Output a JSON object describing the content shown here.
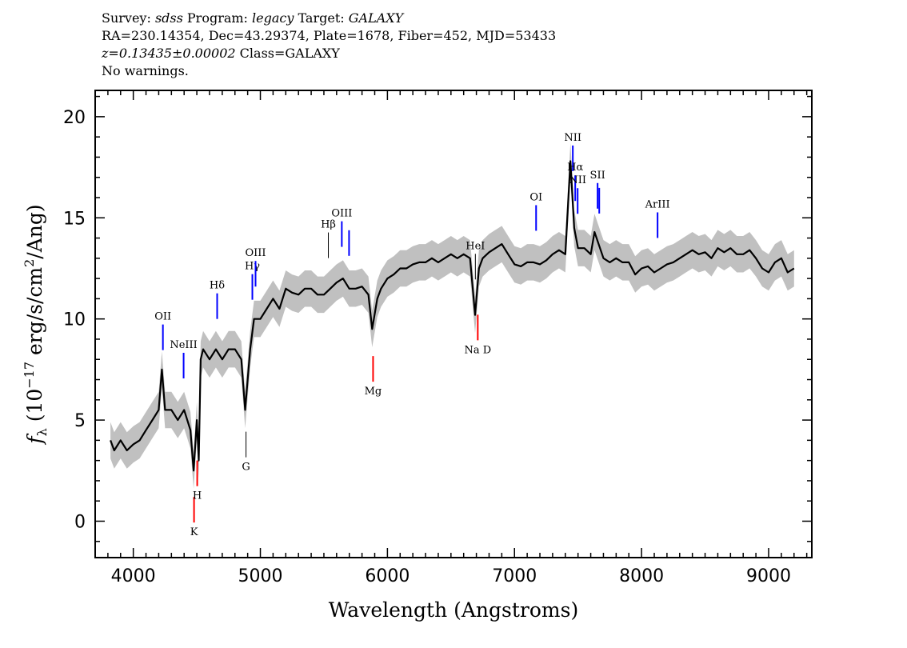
{
  "header": {
    "line1": [
      {
        "t": "Survey: ",
        "i": false
      },
      {
        "t": "sdss",
        "i": true
      },
      {
        "t": " Program: ",
        "i": false
      },
      {
        "t": "legacy",
        "i": true
      },
      {
        "t": " Target: ",
        "i": false
      },
      {
        "t": "GALAXY",
        "i": true
      }
    ],
    "line2": [
      {
        "t": "RA=230.14354, Dec=43.29374, Plate=1678, Fiber=452, MJD=53433",
        "i": false
      }
    ],
    "line3": [
      {
        "t": "z=0.13435±0.00002",
        "i": true
      },
      {
        "t": " Class=GALAXY",
        "i": false
      }
    ],
    "line4": [
      {
        "t": "No warnings.",
        "i": false
      }
    ]
  },
  "chart_data": {
    "type": "line",
    "xlabel": "Wavelength (Angstroms)",
    "ylabel": {
      "f": "f",
      "sub": "λ",
      "a": " (10",
      "sup1": "−17",
      "b": " erg/s/cm",
      "sup2": "2",
      "c": "/Ang)"
    },
    "xlim": [
      3700,
      9340
    ],
    "ylim": [
      -1.8,
      21.3
    ],
    "xticks": [
      4000,
      5000,
      6000,
      7000,
      8000,
      9000
    ],
    "yticks": [
      0,
      5,
      10,
      15,
      20
    ],
    "grid": false,
    "colors": {
      "flux": "#000000",
      "error_band": "#c0c0c0",
      "emission": "#0000ff",
      "absorption": "#ff0000",
      "other": "#000000"
    },
    "error_approx": 0.9,
    "spectrum": {
      "x": [
        3820,
        3850,
        3900,
        3950,
        4000,
        4050,
        4100,
        4150,
        4200,
        4225,
        4250,
        4300,
        4350,
        4400,
        4450,
        4475,
        4500,
        4515,
        4530,
        4550,
        4600,
        4650,
        4700,
        4750,
        4800,
        4850,
        4880,
        4920,
        4950,
        5000,
        5050,
        5100,
        5150,
        5200,
        5250,
        5300,
        5350,
        5400,
        5450,
        5500,
        5550,
        5600,
        5650,
        5700,
        5750,
        5800,
        5850,
        5880,
        5920,
        5950,
        6000,
        6050,
        6100,
        6150,
        6200,
        6250,
        6300,
        6350,
        6400,
        6450,
        6500,
        6550,
        6600,
        6650,
        6690,
        6720,
        6750,
        6800,
        6850,
        6900,
        6950,
        7000,
        7050,
        7100,
        7150,
        7200,
        7250,
        7300,
        7350,
        7400,
        7440,
        7470,
        7500,
        7550,
        7600,
        7630,
        7700,
        7750,
        7800,
        7850,
        7900,
        7950,
        8000,
        8050,
        8100,
        8150,
        8200,
        8250,
        8300,
        8350,
        8400,
        8450,
        8500,
        8550,
        8600,
        8650,
        8700,
        8750,
        8800,
        8850,
        8900,
        8950,
        9000,
        9050,
        9100,
        9150,
        9200
      ],
      "flux": [
        4.0,
        3.5,
        4.0,
        3.5,
        3.8,
        4.0,
        4.5,
        5.0,
        5.5,
        7.5,
        5.5,
        5.5,
        5.0,
        5.5,
        4.5,
        2.5,
        5.0,
        3.0,
        8.0,
        8.5,
        8.0,
        8.5,
        8.0,
        8.5,
        8.5,
        8.0,
        5.5,
        8.5,
        10.0,
        10.0,
        10.5,
        11.0,
        10.5,
        11.5,
        11.3,
        11.2,
        11.5,
        11.5,
        11.2,
        11.2,
        11.5,
        11.8,
        12.0,
        11.5,
        11.5,
        11.6,
        11.2,
        9.5,
        11.0,
        11.5,
        12.0,
        12.2,
        12.5,
        12.5,
        12.7,
        12.8,
        12.8,
        13.0,
        12.8,
        13.0,
        13.2,
        13.0,
        13.2,
        13.0,
        10.2,
        12.5,
        13.0,
        13.3,
        13.5,
        13.7,
        13.2,
        12.7,
        12.6,
        12.8,
        12.8,
        12.7,
        12.9,
        13.2,
        13.4,
        13.2,
        17.8,
        14.5,
        13.5,
        13.5,
        13.2,
        14.3,
        13.0,
        12.8,
        13.0,
        12.8,
        12.8,
        12.2,
        12.5,
        12.6,
        12.3,
        12.5,
        12.7,
        12.8,
        13.0,
        13.2,
        13.4,
        13.2,
        13.3,
        13.0,
        13.5,
        13.3,
        13.5,
        13.2,
        13.2,
        13.4,
        13.0,
        12.5,
        12.3,
        12.8,
        13.0,
        12.3,
        12.5
      ]
    },
    "lines": [
      {
        "label": "OII",
        "x": 4233,
        "kind": "emission",
        "pos": "above"
      },
      {
        "label": "NeIII",
        "x": 4396,
        "kind": "emission",
        "pos": "above"
      },
      {
        "label": "Hδ",
        "x": 4660,
        "kind": "emission",
        "pos": "above"
      },
      {
        "label": "Hγ",
        "x": 4937,
        "kind": "emission",
        "pos": "above"
      },
      {
        "label": "OIII",
        "x": 4962,
        "kind": "emission",
        "pos": "above"
      },
      {
        "label": "Hβ",
        "x": 5535,
        "kind": "other",
        "pos": "above"
      },
      {
        "label": "OIII",
        "x": 5641,
        "kind": "emission",
        "pos": "above"
      },
      {
        "label": "",
        "x": 5698,
        "kind": "emission",
        "pos": "above"
      },
      {
        "label": "HeI",
        "x": 6692,
        "kind": "other",
        "pos": "above"
      },
      {
        "label": "OI",
        "x": 7170,
        "kind": "emission",
        "pos": "above"
      },
      {
        "label": "NII",
        "x": 7459,
        "kind": "emission",
        "pos": "above"
      },
      {
        "label": "Hα",
        "x": 7478,
        "kind": "emission",
        "pos": "above"
      },
      {
        "label": "NII",
        "x": 7497,
        "kind": "emission",
        "pos": "above"
      },
      {
        "label": "SII",
        "x": 7654,
        "kind": "emission",
        "pos": "above"
      },
      {
        "label": "",
        "x": 7667,
        "kind": "emission",
        "pos": "above"
      },
      {
        "label": "ArIII",
        "x": 8126,
        "kind": "emission",
        "pos": "above"
      },
      {
        "label": "K",
        "x": 4478,
        "kind": "absorption",
        "pos": "below"
      },
      {
        "label": "H",
        "x": 4503,
        "kind": "absorption",
        "pos": "below"
      },
      {
        "label": "G",
        "x": 4887,
        "kind": "other",
        "pos": "below"
      },
      {
        "label": "Mg",
        "x": 5887,
        "kind": "absorption",
        "pos": "below"
      },
      {
        "label": "Na D",
        "x": 6711,
        "kind": "absorption",
        "pos": "below"
      }
    ]
  }
}
